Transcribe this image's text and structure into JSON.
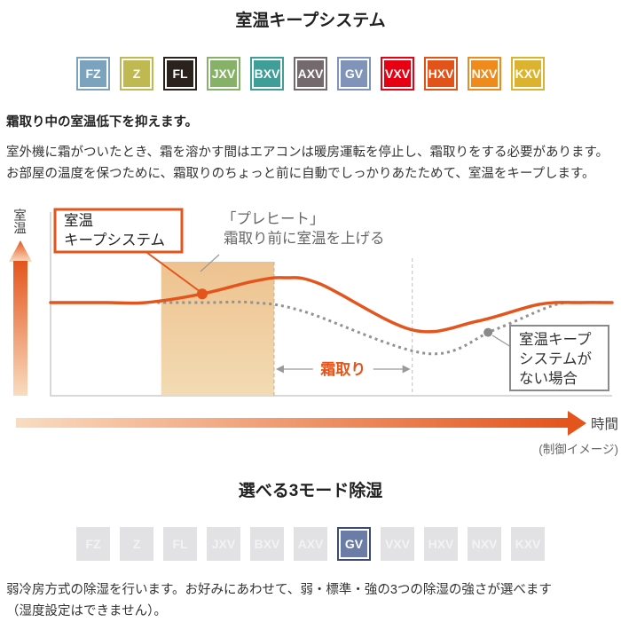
{
  "section1": {
    "title": "室温キープシステム",
    "models": [
      {
        "label": "FZ",
        "color": "#7ba3bd"
      },
      {
        "label": "Z",
        "color": "#c0b851"
      },
      {
        "label": "FL",
        "color": "#2b221e"
      },
      {
        "label": "JXV",
        "color": "#85b267"
      },
      {
        "label": "BXV",
        "color": "#3f9e97"
      },
      {
        "label": "AXV",
        "color": "#746a6e"
      },
      {
        "label": "GV",
        "color": "#8093b8"
      },
      {
        "label": "VXV",
        "color": "#e60012"
      },
      {
        "label": "HXV",
        "color": "#e2531a"
      },
      {
        "label": "NXV",
        "color": "#ef8b1c"
      },
      {
        "label": "KXV",
        "color": "#dcb32e"
      }
    ],
    "lead": "霜取り中の室温低下を抑えます。",
    "body": "室外機に霜がついたとき、霜を溶かす間はエアコンは暖房運転を停止し、霜取りをする必要があります。\nお部屋の温度を保つために、霜取りのちょっと前に自動でしっかりあたためて、室温をキープします。"
  },
  "chart": {
    "ylabel": "室温",
    "xlabel": "時間",
    "note": "(制御イメージ)",
    "accent_color": "#e4551d",
    "keep_box": {
      "line1": "室温",
      "line2": "キープシステム"
    },
    "preheat": {
      "line1": "「プレヒート」",
      "line2": "霜取り前に室温を上げる"
    },
    "frost_label": "霜取り",
    "no_system_box": {
      "line1": "室温キープ",
      "line2": "システムが",
      "line3": "ない場合"
    }
  },
  "chart_data": {
    "type": "line",
    "title": "室温キープシステム (制御イメージ)",
    "xlabel": "時間",
    "ylabel": "室温",
    "x_range": [
      0,
      10
    ],
    "y_unit": "relative room temperature (conceptual, no numeric scale)",
    "grid": false,
    "legend_position": "inline-callouts",
    "series": [
      {
        "name": "室温キープシステム",
        "style": "solid",
        "color": "#e4551d",
        "points": [
          [
            0,
            0
          ],
          [
            1.0,
            0
          ],
          [
            1.7,
            0
          ],
          [
            2.7,
            0.35
          ],
          [
            3.6,
            0.85
          ],
          [
            4.15,
            1.0
          ],
          [
            4.8,
            0.75
          ],
          [
            6.44,
            -1.1
          ],
          [
            7.6,
            -0.75
          ],
          [
            8.7,
            -0.07
          ],
          [
            9.4,
            0
          ],
          [
            10,
            0
          ]
        ]
      },
      {
        "name": "室温キープシステムがない場合",
        "style": "dotted",
        "color": "#929292",
        "points": [
          [
            1.9,
            0
          ],
          [
            2.8,
            0
          ],
          [
            3.6,
            0
          ],
          [
            4.5,
            -0.35
          ],
          [
            6.7,
            -2.05
          ],
          [
            7.9,
            -1.1
          ],
          [
            8.97,
            -0.1
          ],
          [
            9.5,
            0
          ],
          [
            10,
            0
          ]
        ]
      }
    ],
    "markers": [
      {
        "series": 0,
        "x": 2.7,
        "y": 0.35,
        "label": "室温キープシステム"
      },
      {
        "series": 1,
        "x": 7.79,
        "y": -1.2,
        "label": "室温キープシステムがない場合"
      }
    ],
    "preheat_region": {
      "x0": 1.97,
      "x1": 3.98,
      "label": "「プレヒート」霜取り前に室温を上げる"
    },
    "frost_region": {
      "x0": 3.98,
      "x1": 6.44,
      "label": "霜取り"
    },
    "annotations": [
      "「プレヒート」霜取り前に室温を上げる",
      "霜取り",
      "室温キープシステム",
      "室温キープシステムがない場合",
      "(制御イメージ)"
    ]
  },
  "section2": {
    "title": "選べる3モード除湿",
    "models": [
      "FZ",
      "Z",
      "FL",
      "JXV",
      "BXV",
      "AXV",
      "GV",
      "VXV",
      "HXV",
      "NXV",
      "KXV"
    ],
    "active_model": "GV",
    "active_color": "#6b7da7",
    "active_border_color": "#3f4b6e",
    "inactive_color": "#e2e2e4",
    "body": "弱冷房方式の除湿を行います。お好みにあわせて、弱・標準・強の3つの除湿の強さが選べます\n（湿度設定はできません）。"
  }
}
